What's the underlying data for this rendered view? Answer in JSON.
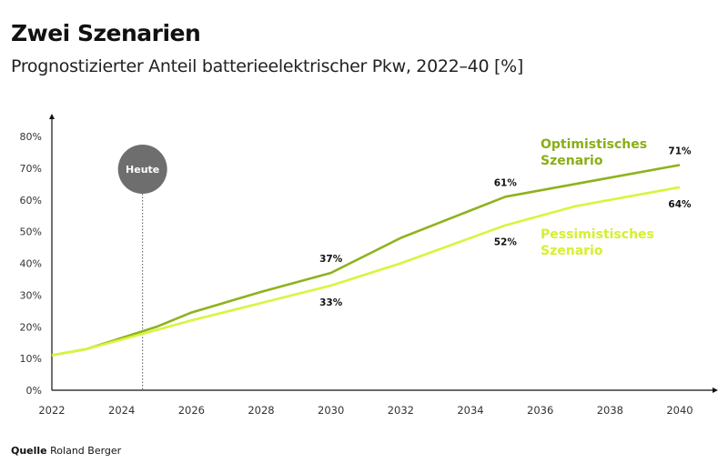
{
  "title": "Zwei Szenarien",
  "subtitle": "Prognostizierter Anteil batterieelektrischer Pkw, 2022–40 [%]",
  "source": {
    "label": "Quelle",
    "text": "Roland Berger"
  },
  "chart_data": {
    "type": "line",
    "xlim": [
      2022,
      2040
    ],
    "ylim": [
      0,
      80
    ],
    "x_ticks": [
      "2022",
      "2024",
      "2026",
      "2028",
      "2030",
      "2032",
      "2034",
      "2036",
      "2038",
      "2040"
    ],
    "y_ticks": [
      "0%",
      "10%",
      "20%",
      "30%",
      "40%",
      "50%",
      "60%",
      "70%",
      "80%"
    ],
    "grid": false,
    "marker": {
      "label": "Heute",
      "x": 2024.6,
      "color": "#6e6e6e"
    },
    "series": [
      {
        "name": "Optimistisches Szenario",
        "color": "#8fb21c",
        "x": [
          2022,
          2023,
          2024,
          2025,
          2026,
          2028,
          2030,
          2032,
          2035,
          2037,
          2040
        ],
        "y": [
          11,
          13,
          16.5,
          20,
          24.5,
          31,
          37,
          48,
          61,
          65,
          71
        ],
        "labels": [
          {
            "x": 2030,
            "y": 37,
            "text": "37%"
          },
          {
            "x": 2035,
            "y": 61,
            "text": "61%"
          },
          {
            "x": 2040,
            "y": 71,
            "text": "71%"
          }
        ]
      },
      {
        "name": "Pessimistisches Szenario",
        "color": "#d8f53c",
        "x": [
          2022,
          2023,
          2024,
          2025,
          2026,
          2028,
          2030,
          2032,
          2035,
          2037,
          2040
        ],
        "y": [
          11,
          13,
          16,
          19,
          22,
          27.5,
          33,
          40,
          52,
          58,
          64
        ],
        "labels": [
          {
            "x": 2030,
            "y": 33,
            "text": "33%"
          },
          {
            "x": 2035,
            "y": 52,
            "text": "52%"
          },
          {
            "x": 2040,
            "y": 64,
            "text": "64%"
          }
        ]
      }
    ]
  }
}
